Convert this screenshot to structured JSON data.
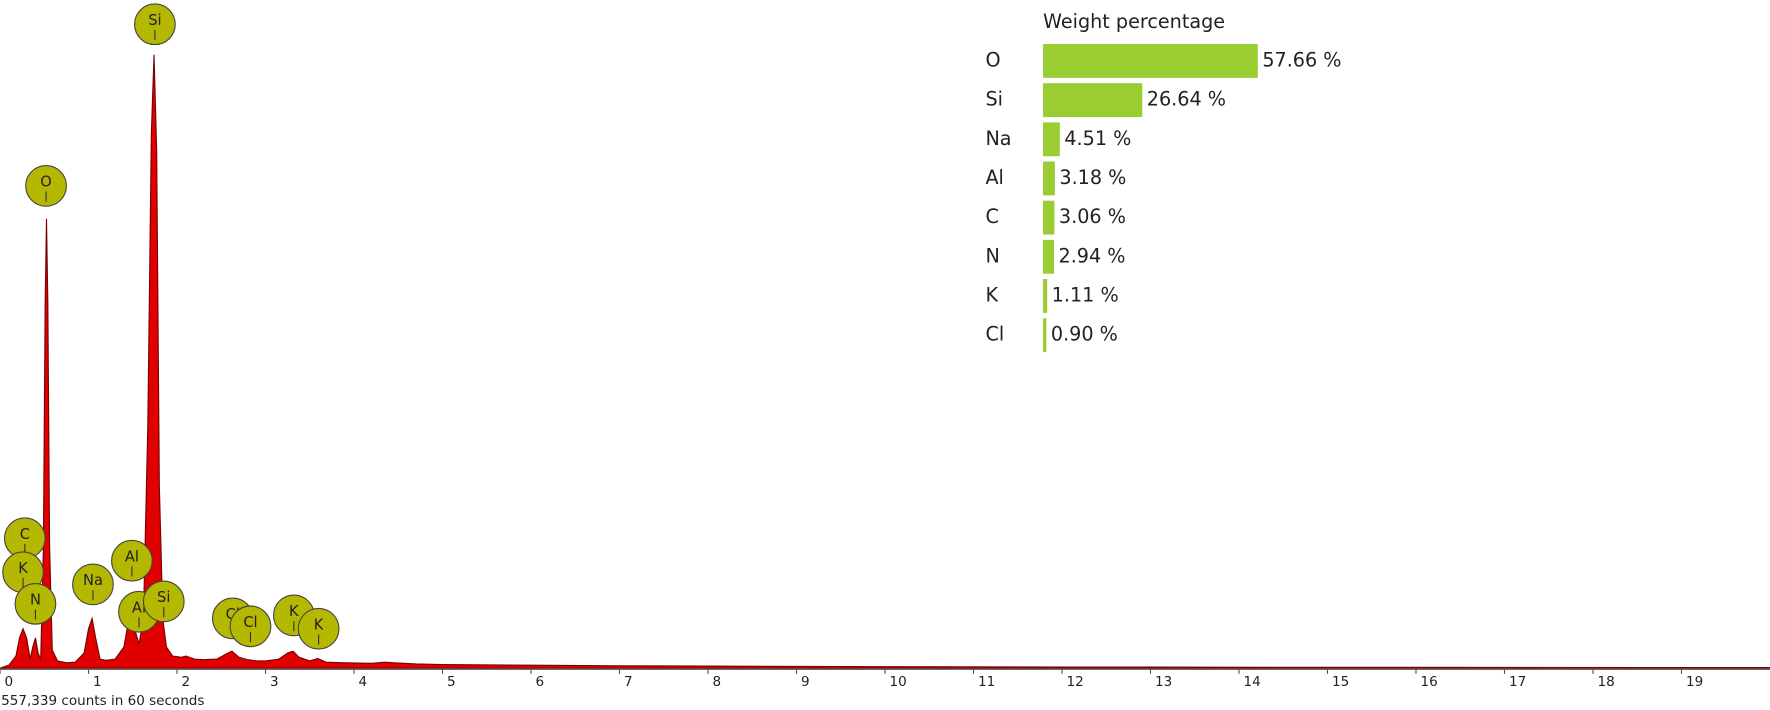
{
  "chart_data": [
    {
      "type": "area",
      "caption": "557,339 counts in 60 seconds",
      "color": "#e00000",
      "line_color": "#7a0000",
      "marker_color": "#b5b800",
      "xlim": [
        0,
        20
      ],
      "xticks": [
        0,
        1,
        2,
        3,
        4,
        5,
        6,
        7,
        8,
        9,
        10,
        11,
        12,
        13,
        14,
        15,
        16,
        17,
        18,
        19
      ],
      "ylim": [
        0,
        110
      ],
      "x": [
        0,
        0.1,
        0.18,
        0.22,
        0.26,
        0.3,
        0.34,
        0.37,
        0.4,
        0.43,
        0.46,
        0.49,
        0.51,
        0.525,
        0.54,
        0.56,
        0.59,
        0.65,
        0.75,
        0.85,
        0.95,
        1.0,
        1.04,
        1.08,
        1.13,
        1.2,
        1.3,
        1.4,
        1.46,
        1.49,
        1.53,
        1.57,
        1.62,
        1.67,
        1.71,
        1.74,
        1.77,
        1.8,
        1.84,
        1.88,
        1.95,
        2.05,
        2.1,
        2.2,
        2.3,
        2.45,
        2.55,
        2.62,
        2.7,
        2.8,
        2.9,
        3.0,
        3.15,
        3.25,
        3.31,
        3.38,
        3.5,
        3.59,
        3.68,
        3.9,
        4.2,
        4.35,
        4.45,
        4.7,
        5,
        6,
        7,
        8,
        10,
        12,
        15,
        20
      ],
      "values": [
        0,
        0.5,
        2,
        5,
        6.5,
        5,
        1.5,
        3.5,
        5,
        2.5,
        1.5,
        20,
        60,
        74,
        60,
        20,
        3,
        1.2,
        0.9,
        1,
        2.5,
        6.5,
        8.2,
        5,
        1.5,
        1.3,
        1.5,
        3.5,
        8.5,
        10,
        6,
        4,
        8,
        40,
        88,
        101,
        85,
        30,
        8,
        3.5,
        2,
        1.8,
        2,
        1.5,
        1.4,
        1.5,
        2.3,
        2.8,
        1.8,
        1.4,
        1.2,
        1.2,
        1.5,
        2.5,
        2.8,
        1.8,
        1.2,
        1.6,
        1,
        0.9,
        0.8,
        1,
        0.9,
        0.7,
        0.6,
        0.5,
        0.4,
        0.35,
        0.25,
        0.2,
        0.15,
        0.1
      ],
      "markers": [
        {
          "label": "C",
          "x": 0.28,
          "y": 21.4
        },
        {
          "label": "K",
          "x": 0.26,
          "y": 15.8
        },
        {
          "label": "N",
          "x": 0.4,
          "y": 10.6
        },
        {
          "label": "O",
          "x": 0.52,
          "y": 79.4
        },
        {
          "label": "Na",
          "x": 1.05,
          "y": 13.8
        },
        {
          "label": "Al",
          "x": 1.49,
          "y": 17.7
        },
        {
          "label": "Al",
          "x": 1.57,
          "y": 9.3
        },
        {
          "label": "Si",
          "x": 1.75,
          "y": 106
        },
        {
          "label": "Si",
          "x": 1.85,
          "y": 11
        },
        {
          "label": "Cl",
          "x": 2.63,
          "y": 8.2
        },
        {
          "label": "Cl",
          "x": 2.83,
          "y": 6.9
        },
        {
          "label": "K",
          "x": 3.32,
          "y": 8.7
        },
        {
          "label": "K",
          "x": 3.6,
          "y": 6.5
        }
      ]
    },
    {
      "type": "bar",
      "title": "Weight percentage",
      "color": "#9acd32",
      "xlim": [
        0,
        60
      ],
      "categories": [
        "O",
        "Si",
        "Na",
        "Al",
        "C",
        "N",
        "K",
        "Cl"
      ],
      "values": [
        57.66,
        26.64,
        4.51,
        3.18,
        3.06,
        2.94,
        1.11,
        0.9
      ],
      "value_labels": [
        "57.66 %",
        "26.64 %",
        "4.51 %",
        "3.18 %",
        "3.06 %",
        "2.94 %",
        "1.11 %",
        "0.90 %"
      ]
    }
  ]
}
